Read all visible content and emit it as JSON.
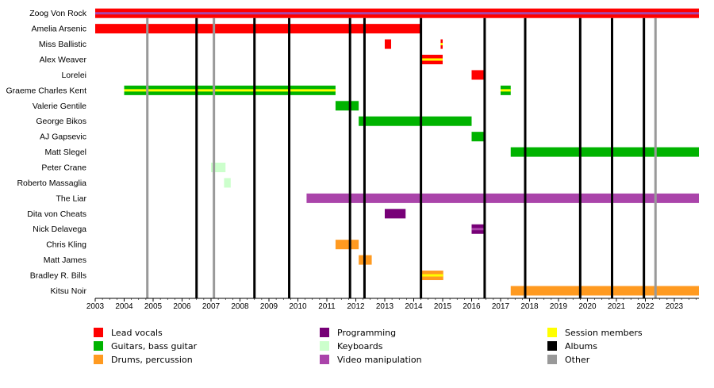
{
  "chart_data": {
    "type": "timeline",
    "x_range": [
      2003,
      2023.85
    ],
    "x_ticks": [
      "2003",
      "2004",
      "2005",
      "2006",
      "2007",
      "2008",
      "2009",
      "2010",
      "2011",
      "2012",
      "2013",
      "2014",
      "2015",
      "2016",
      "2017",
      "2018",
      "2019",
      "2020",
      "2021",
      "2022",
      "2023"
    ],
    "categories": {
      "lead_vocals": {
        "label": "Lead vocals",
        "color": "#ff0000"
      },
      "guitars": {
        "label": "Guitars, bass guitar",
        "color": "#00b300"
      },
      "drums": {
        "label": "Drums, percussion",
        "color": "#ff9a20"
      },
      "programming": {
        "label": "Programming",
        "color": "#770077"
      },
      "keyboards": {
        "label": "Keyboards",
        "color": "#ccffcc"
      },
      "video": {
        "label": "Video manipulation",
        "color": "#aa44aa"
      },
      "session": {
        "label": "Session members",
        "color": "#ffff00"
      },
      "albums": {
        "label": "Albums",
        "color": "#000000"
      },
      "other": {
        "label": "Other",
        "color": "#999999"
      }
    },
    "legend_order": [
      [
        "lead_vocals",
        "guitars",
        "drums"
      ],
      [
        "programming",
        "keyboards",
        "video"
      ],
      [
        "session",
        "albums",
        "other"
      ]
    ],
    "members": [
      {
        "name": "Zoog Von Rock",
        "bars": [
          {
            "start": 2003,
            "end": 2023.85,
            "color": "lead_vocals",
            "stripe": "video"
          }
        ]
      },
      {
        "name": "Amelia Arsenic",
        "bars": [
          {
            "start": 2003,
            "end": 2014.25,
            "color": "lead_vocals"
          }
        ]
      },
      {
        "name": "Miss Ballistic",
        "bars": [
          {
            "start": 2013.0,
            "end": 2013.22,
            "color": "lead_vocals"
          },
          {
            "start": 2014.93,
            "end": 2015.0,
            "color": "lead_vocals",
            "stripe": "session"
          }
        ]
      },
      {
        "name": "Alex Weaver",
        "bars": [
          {
            "start": 2014.25,
            "end": 2015.0,
            "color": "lead_vocals",
            "stripe": "session"
          }
        ]
      },
      {
        "name": "Lorelei",
        "bars": [
          {
            "start": 2016.0,
            "end": 2016.45,
            "color": "lead_vocals"
          }
        ]
      },
      {
        "name": "Graeme Charles Kent",
        "bars": [
          {
            "start": 2004.0,
            "end": 2011.3,
            "color": "guitars",
            "stripe": "session"
          },
          {
            "start": 2017.0,
            "end": 2017.35,
            "color": "guitars",
            "stripe": "session"
          }
        ]
      },
      {
        "name": "Valerie Gentile",
        "bars": [
          {
            "start": 2011.3,
            "end": 2012.1,
            "color": "guitars"
          }
        ]
      },
      {
        "name": "George Bikos",
        "bars": [
          {
            "start": 2012.1,
            "end": 2016.0,
            "color": "guitars"
          }
        ]
      },
      {
        "name": "AJ Gapsevic",
        "bars": [
          {
            "start": 2016.0,
            "end": 2016.45,
            "color": "guitars"
          }
        ]
      },
      {
        "name": "Matt Slegel",
        "bars": [
          {
            "start": 2017.35,
            "end": 2023.85,
            "color": "guitars"
          }
        ]
      },
      {
        "name": "Peter Crane",
        "bars": [
          {
            "start": 2007.0,
            "end": 2007.5,
            "color": "keyboards"
          }
        ]
      },
      {
        "name": "Roberto Massaglia",
        "bars": [
          {
            "start": 2007.45,
            "end": 2007.68,
            "color": "keyboards"
          }
        ]
      },
      {
        "name": "The Liar",
        "bars": [
          {
            "start": 2010.3,
            "end": 2023.85,
            "color": "video"
          }
        ]
      },
      {
        "name": "Dita von Cheats",
        "bars": [
          {
            "start": 2013.0,
            "end": 2013.72,
            "color": "programming"
          }
        ]
      },
      {
        "name": "Nick Delavega",
        "bars": [
          {
            "start": 2016.0,
            "end": 2016.45,
            "color": "programming",
            "stripe": "video"
          }
        ]
      },
      {
        "name": "Chris Kling",
        "bars": [
          {
            "start": 2011.3,
            "end": 2012.1,
            "color": "drums"
          }
        ]
      },
      {
        "name": "Matt James",
        "bars": [
          {
            "start": 2012.1,
            "end": 2012.55,
            "color": "drums"
          }
        ]
      },
      {
        "name": "Bradley R. Bills",
        "bars": [
          {
            "start": 2014.25,
            "end": 2015.02,
            "color": "drums",
            "stripe": "session"
          }
        ]
      },
      {
        "name": "Kitsu Noir",
        "bars": [
          {
            "start": 2017.35,
            "end": 2023.85,
            "color": "drums"
          }
        ]
      }
    ],
    "albums": [
      2006.5,
      2008.5,
      2009.7,
      2011.8,
      2012.3,
      2014.25,
      2016.45,
      2017.85,
      2019.75,
      2020.85,
      2021.95
    ],
    "other_events": [
      2004.8,
      2007.1,
      2022.35
    ],
    "grid": false
  }
}
